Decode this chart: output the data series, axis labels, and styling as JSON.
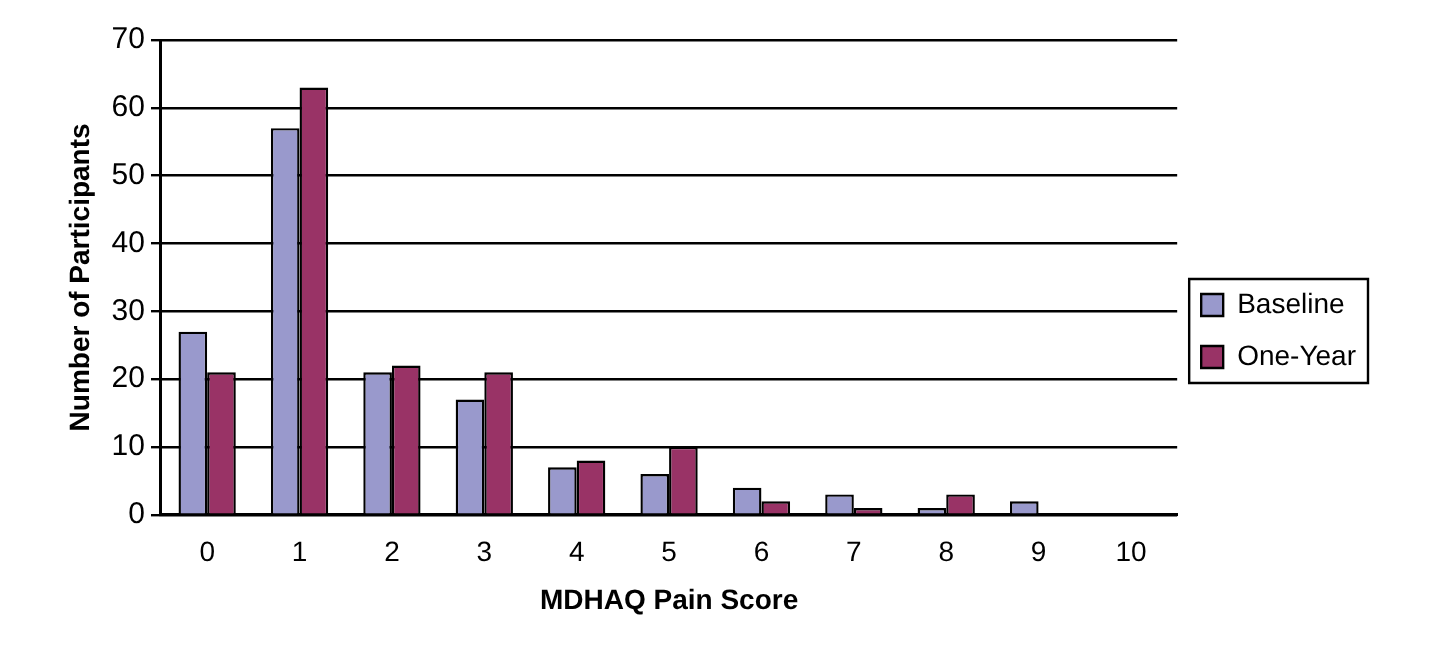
{
  "chart_data": {
    "type": "bar",
    "xlabel": "MDHAQ Pain Score",
    "ylabel": "Number of Participants",
    "categories": [
      "0",
      "1",
      "2",
      "3",
      "4",
      "5",
      "6",
      "7",
      "8",
      "9",
      "10"
    ],
    "series": [
      {
        "name": "Baseline",
        "color": "#9999cc",
        "values": [
          27,
          57,
          21,
          17,
          7,
          6,
          4,
          3,
          1,
          2,
          0
        ]
      },
      {
        "name": "One-Year",
        "color": "#993366",
        "values": [
          21,
          63,
          22,
          21,
          8,
          10,
          2,
          1,
          3,
          0,
          0
        ]
      }
    ],
    "ylim": [
      0,
      70
    ],
    "yticks": [
      0,
      10,
      20,
      30,
      40,
      50,
      60,
      70
    ],
    "grid": "y",
    "legend": "right"
  }
}
